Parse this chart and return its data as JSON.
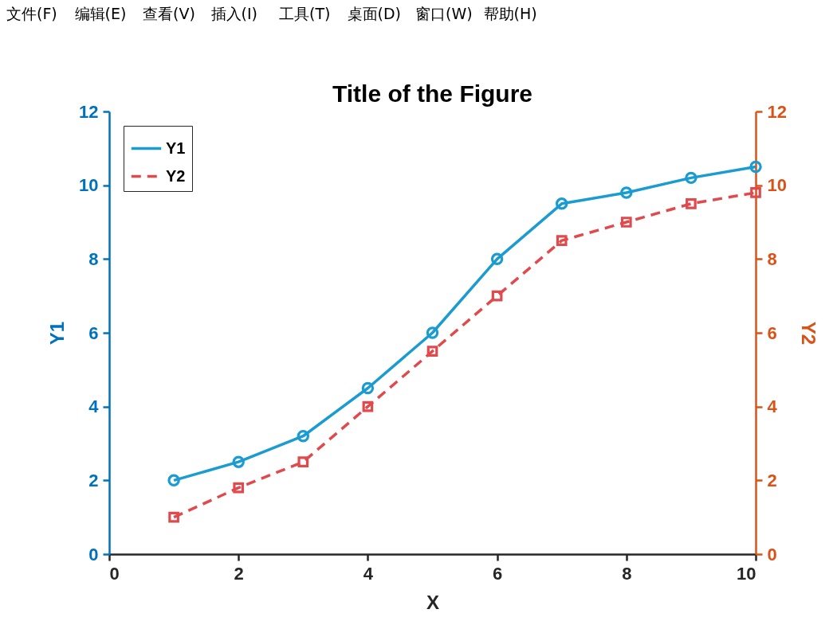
{
  "chart_data": [
    {
      "type": "other",
      "annotations": [
        "文件(F)",
        "编辑(E)",
        "查看(V)",
        "插入(I)",
        "工具(T)",
        "桌面(D)",
        "窗口(W)",
        "帮助(H)"
      ]
    },
    {
      "type": "line",
      "title": "Title of the Figure",
      "xlabel": "X",
      "ylabel": "Y1",
      "y2label": "Y2",
      "x": [
        1,
        2,
        3,
        4,
        5,
        6,
        7,
        8,
        9,
        10
      ],
      "series": [
        {
          "name": "Y1",
          "color": "#1a9bd1",
          "marker": "circle",
          "line_style": "solid",
          "values": [
            2,
            2.5,
            3.2,
            4.5,
            6,
            8,
            9.5,
            9.8,
            10.2,
            10.5
          ]
        },
        {
          "name": "Y2",
          "color": "#e04a4d",
          "marker": "square",
          "line_style": "dashed",
          "axis": "y2",
          "values": [
            1,
            1.8,
            2.5,
            4,
            5.5,
            7,
            8.5,
            9,
            9.5,
            9.8
          ]
        }
      ],
      "xlim": [
        0,
        10
      ],
      "xticks": [
        0,
        2,
        4,
        6,
        8,
        10
      ],
      "ylim": [
        0,
        12
      ],
      "yticks": [
        0,
        2,
        4,
        6,
        8,
        10,
        12
      ],
      "y2lim": [
        0,
        12
      ],
      "y2ticks": [
        0,
        2,
        4,
        6,
        8,
        10,
        12
      ],
      "grid": false,
      "legend": "top left"
    }
  ]
}
